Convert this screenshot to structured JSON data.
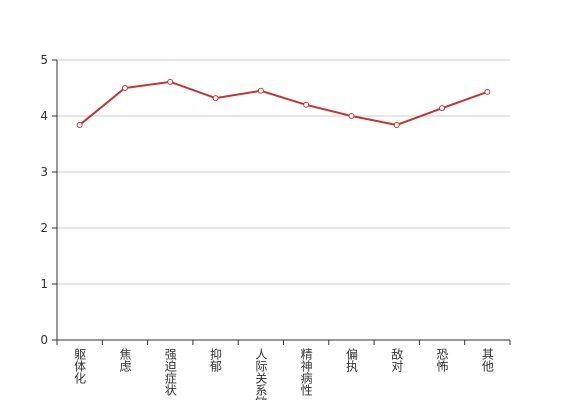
{
  "chart_data": {
    "type": "line",
    "categories": [
      "躯体化",
      "焦虑",
      "强迫症状",
      "抑郁",
      "人际关系敏感",
      "精神病性",
      "偏执",
      "敌对",
      "恐怖",
      "其他"
    ],
    "values": [
      3.84,
      4.5,
      4.61,
      4.32,
      4.45,
      4.2,
      4.0,
      3.84,
      4.14,
      4.43
    ],
    "color": "#c23531",
    "ylim": [
      0,
      5
    ],
    "yticks": [
      0,
      1,
      2,
      3,
      4,
      5
    ],
    "grid": true
  }
}
